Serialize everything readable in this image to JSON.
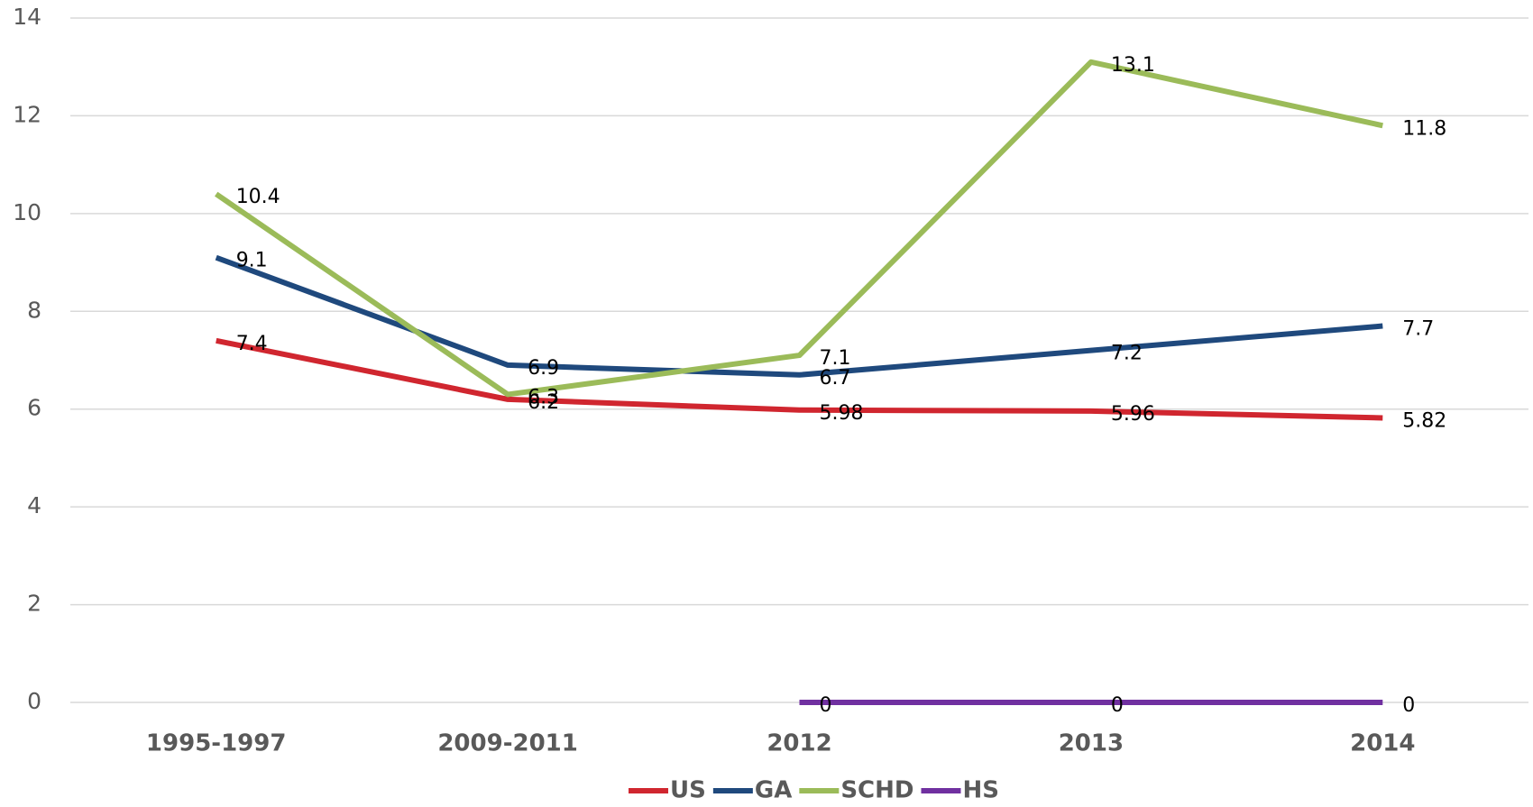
{
  "chart_data": {
    "type": "line",
    "categories": [
      "1995-1997",
      "2009-2011",
      "2012",
      "2013",
      "2014"
    ],
    "series": [
      {
        "name": "US",
        "color": "#d0262f",
        "values": [
          7.4,
          6.2,
          5.98,
          5.96,
          5.82
        ]
      },
      {
        "name": "GA",
        "color": "#1f497d",
        "values": [
          9.1,
          6.9,
          6.7,
          7.2,
          7.7
        ]
      },
      {
        "name": "SCHD",
        "color": "#9bbb59",
        "values": [
          10.4,
          6.3,
          7.1,
          13.1,
          11.8
        ]
      },
      {
        "name": "HS",
        "color": "#7030a0",
        "values": [
          null,
          null,
          0,
          0,
          0
        ]
      }
    ],
    "ylim": [
      0,
      14
    ],
    "yticks": [
      0,
      2,
      4,
      6,
      8,
      10,
      12,
      14
    ],
    "grid": true,
    "legend": "bottom"
  }
}
